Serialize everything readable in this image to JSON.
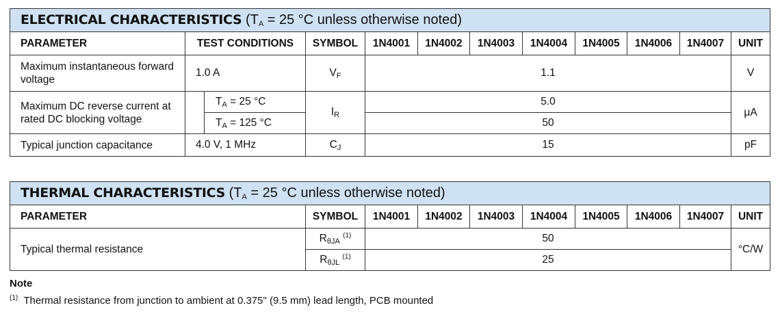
{
  "electrical": {
    "title": "ELECTRICAL CHARACTERISTICS",
    "condition": {
      "prefix": "(T",
      "sub": "A",
      "suffix": " = 25 °C unless otherwise noted)"
    },
    "headers": {
      "parameter": "PARAMETER",
      "test_conditions": "TEST CONDITIONS",
      "symbol": "SYMBOL",
      "unit": "UNIT"
    },
    "models": [
      "1N4001",
      "1N4002",
      "1N4003",
      "1N4004",
      "1N4005",
      "1N4006",
      "1N4007"
    ],
    "rows": [
      {
        "parameter": "Maximum instantaneous forward voltage",
        "condition": "1.0 A",
        "symbol": "V",
        "symbol_sub": "F",
        "value": "1.1",
        "unit": "V"
      },
      {
        "parameter": "Maximum DC reverse current at rated DC blocking voltage",
        "symbol": "I",
        "symbol_sub": "R",
        "unit": "μA",
        "sub_rows": [
          {
            "cond_prefix": "T",
            "cond_sub": "A",
            "cond_suffix": " = 25 °C",
            "value": "5.0"
          },
          {
            "cond_prefix": "T",
            "cond_sub": "A",
            "cond_suffix": " = 125 °C",
            "value": "50"
          }
        ]
      },
      {
        "parameter": "Typical junction capacitance",
        "condition": "4.0 V, 1 MHz",
        "symbol": "C",
        "symbol_sub": "J",
        "value": "15",
        "unit": "pF"
      }
    ]
  },
  "thermal": {
    "title": "THERMAL CHARACTERISTICS",
    "condition": {
      "prefix": "(T",
      "sub": "A",
      "suffix": " = 25 °C unless otherwise noted)"
    },
    "headers": {
      "parameter": "PARAMETER",
      "symbol": "SYMBOL",
      "unit": "UNIT"
    },
    "parameter": "Typical thermal resistance",
    "unit": "°C/W",
    "rows": [
      {
        "symbol": "R",
        "symbol_sub": "θJA",
        "note_ref": "(1)",
        "value": "50"
      },
      {
        "symbol": "R",
        "symbol_sub": "θJL",
        "note_ref": "(1)",
        "value": "25"
      }
    ]
  },
  "note": {
    "heading": "Note",
    "ref": "(1)",
    "text": "Thermal resistance from junction to ambient at 0.375\" (9.5 mm) lead length, PCB mounted"
  },
  "colors": {
    "header_bg": "#cfe2f3",
    "border": "#333333"
  }
}
